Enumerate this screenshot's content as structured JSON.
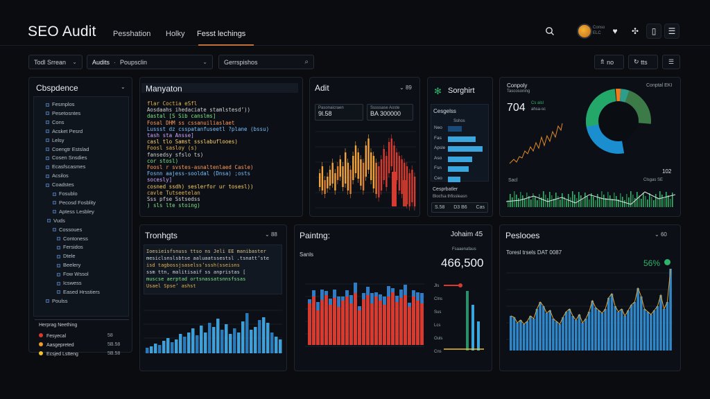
{
  "app": {
    "title": "SEO Audit"
  },
  "nav": {
    "tabs": [
      "Pesshation",
      "Holky",
      "Fesst lechings"
    ]
  },
  "topbar": {
    "avatar_label_1": "Conso",
    "avatar_label_2": "ELC"
  },
  "filters": {
    "f1": "Todl Srrean",
    "f2_a": "Audits",
    "f2_b": "Poupsclin",
    "f3": "Gerrspishos",
    "btn_a": "no",
    "btn_b": "tts"
  },
  "sidebar": {
    "title": "Cbspdence",
    "items": [
      "Fesmplos",
      "Pesetosntes",
      "Cons",
      "Acsket Pesrd",
      "Lelsy",
      "Coengtr Estslad",
      "Cosen Snsdies",
      "Ecasfscasmes",
      "Acsilos",
      "Coadstes",
      "Fosublo",
      "Pecosd Fosblity",
      "Aptess Lesbley",
      "Vuds",
      "Cossoues",
      "Contoness",
      "Fersidos",
      "Dtele",
      "Beelery",
      "Fow Wssol",
      "Icswess",
      "Eased Hrsstiers",
      "Poulss"
    ],
    "section": "Herprag Neething",
    "rows": [
      {
        "label": "Fesyecal",
        "value": "58"
      },
      {
        "label": "Aasgepreted",
        "value": "5B.58"
      },
      {
        "label": "Ecsjed Lstteng",
        "value": "5B.58"
      }
    ]
  },
  "code_panel": {
    "title": "Manyaton",
    "lines": [
      "flar Coctia eSfl",
      "  Aosdaahs  ihedaciate stamlstesd’))",
      "  dastal [S Sib canslms]",
      "  Fosal DHM  ss cssanuiliaslaet",
      "  Lussst dz csspatanfuseetl ?plane (bssu)",
      "  tash sta Ansse]",
      "  casl tlo Samst ssslabuflooes)",
      "  Foosl sasloy (s)",
      "  fansedsy sfslo ts)",
      "  cor stosl)",
      "  Foosl r  svstes-asnaltenlaed Casle)",
      "  Fosnn aajess-sooldal (Dnsa)  ;osts",
      "  socesly]",
      "  cosned ssdh) seslerfor ur tosesl))",
      "  cavle Tutseetelan",
      "  Sss pfse Sstsedss",
      ") sls lte stoing)"
    ]
  },
  "audit_panel": {
    "title": "Adit",
    "ctrl": "89",
    "card1": "Pasonaicraen",
    "card1_val": "9l.58",
    "card2": "Sssssase Aoste",
    "card2_val": "BA 300000"
  },
  "insight_panel": {
    "title": "Sorghirt",
    "sub": "Cesgelss",
    "bar_labels": [
      "Neo",
      "Fas",
      "Apsle",
      "Aso",
      "Fsn",
      "Ceo"
    ],
    "bar_header": "Sshos",
    "foot": "Cesprbatler",
    "foot_sub": "Blocfsa thfissleasn",
    "foot_vals": [
      "S.58",
      "D3 B6",
      "Cas"
    ]
  },
  "summary_panel": {
    "title": "Conpoly",
    "sub": "Tascosoning",
    "value": "704",
    "legend_a": "Cs alsl",
    "legend_b": "ahsa-sc",
    "corner": "Conptal EKI",
    "side_val": "102",
    "series_label": "Sacl",
    "series_right": "Clsgas SE"
  },
  "trend_panel": {
    "title": "Tronhgts",
    "ctrl": "88",
    "lines": [
      "Ioesieisfsnuss ttso ns Jeli EE  manibaster",
      "mesiclsnslsbtse aaluaatssestsl .tsnatt’ste",
      "isd  tagbossjsaselss’sssh(sseisns",
      "ssm ttn, malitisaif ss anpristas [",
      "muscse aerptad ortsnassatsnnsfssas",
      "Usael Spse’ ashst"
    ]
  },
  "paint_panel": {
    "title": "Paintng:",
    "right": "Johaim 45",
    "sub": "Sanls",
    "tag": "Fsaaenafaus",
    "big": "466,500",
    "y_labels": [
      "Jls",
      "Clns",
      "Sus",
      "Lcs",
      "Ouls",
      "Cns"
    ]
  },
  "pesloces_panel": {
    "title": "Peslooes",
    "ctrl": "60",
    "sub": "Toresl trsels DAT 0087",
    "percent": "56%"
  },
  "colors": {
    "accent": "#3aa6dd",
    "orange": "#f29a2e",
    "red": "#d73a2f",
    "green": "#2fb36a"
  }
}
